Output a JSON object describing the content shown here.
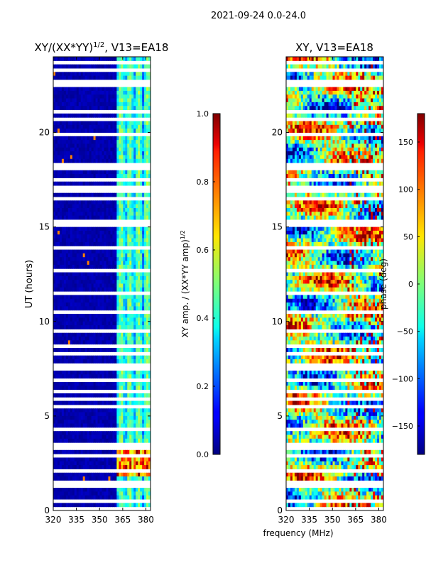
{
  "figure": {
    "suptitle": "2021-09-24 0.0-24.0",
    "xlabel": "frequency (MHz)"
  },
  "chart_data": [
    {
      "type": "heatmap",
      "title_prefix": "XY/(XX*YY)",
      "title_exponent": "1/2",
      "title_suffix": ", V13=EA18",
      "xlabel": "frequency (MHz)",
      "ylabel": "UT (hours)",
      "xlim": [
        320,
        383
      ],
      "ylim": [
        0,
        24
      ],
      "xticks": [
        320,
        335,
        350,
        365,
        380
      ],
      "yticks": [
        0,
        5,
        10,
        15,
        20
      ],
      "colormap": "jet",
      "colorbar": {
        "label_prefix": "XY amp. / (XX*YY amp)",
        "label_exponent": "1/2",
        "range": [
          0.0,
          1.0
        ],
        "ticks": [
          "0.0",
          "0.2",
          "0.4",
          "0.6",
          "0.8",
          "1.0"
        ]
      },
      "flagged_hours": [
        0.15,
        0.45,
        1.3,
        1.5,
        2.1,
        2.95,
        3.3,
        3.55,
        3.8,
        4.3,
        4.6,
        4.8,
        5.5,
        5.85,
        6.3,
        6.6,
        6.9,
        7.5,
        7.75,
        8.3,
        8.65,
        9.5,
        9.8,
        10.2,
        10.45,
        11.5,
        11.8,
        12.4,
        12.75,
        13.0,
        13.6,
        13.9,
        14.2,
        15.1,
        15.25,
        16.5,
        16.85,
        17.1,
        17.5,
        17.8,
        18.05,
        18.3,
        18.6,
        19.2,
        19.9,
        20.4,
        20.7,
        21.1,
        21.8,
        22.0,
        22.45,
        22.75,
        23.0,
        23.35,
        23.7
      ]
    },
    {
      "type": "heatmap",
      "title": "XY, V13=EA18",
      "xlabel": "frequency (MHz)",
      "ylabel": "",
      "xlim": [
        320,
        383
      ],
      "ylim": [
        0,
        24
      ],
      "xticks": [
        320,
        335,
        350,
        365,
        380
      ],
      "yticks": [
        0,
        5,
        10,
        15,
        20
      ],
      "colormap": "jet",
      "colorbar": {
        "label": "phase (deg)",
        "range": [
          -180,
          180
        ],
        "ticks": [
          "150",
          "100",
          "50",
          "0",
          "−50",
          "−100",
          "−150"
        ],
        "tick_values": [
          150,
          100,
          50,
          0,
          -50,
          -100,
          -150
        ]
      },
      "flagged_hours": [
        0.15,
        0.45,
        1.3,
        1.5,
        2.1,
        2.95,
        3.3,
        3.55,
        3.8,
        4.3,
        4.6,
        4.8,
        5.5,
        5.85,
        6.3,
        6.6,
        6.9,
        7.5,
        7.75,
        8.3,
        8.65,
        9.5,
        9.8,
        10.2,
        10.45,
        11.5,
        11.8,
        12.4,
        12.75,
        13.0,
        13.6,
        13.9,
        14.2,
        15.1,
        15.25,
        16.5,
        16.85,
        17.1,
        17.5,
        17.8,
        18.05,
        18.3,
        18.6,
        19.2,
        19.9,
        20.4,
        20.7,
        21.1,
        21.8,
        22.0,
        22.45,
        22.75,
        23.0,
        23.35,
        23.7
      ]
    }
  ]
}
